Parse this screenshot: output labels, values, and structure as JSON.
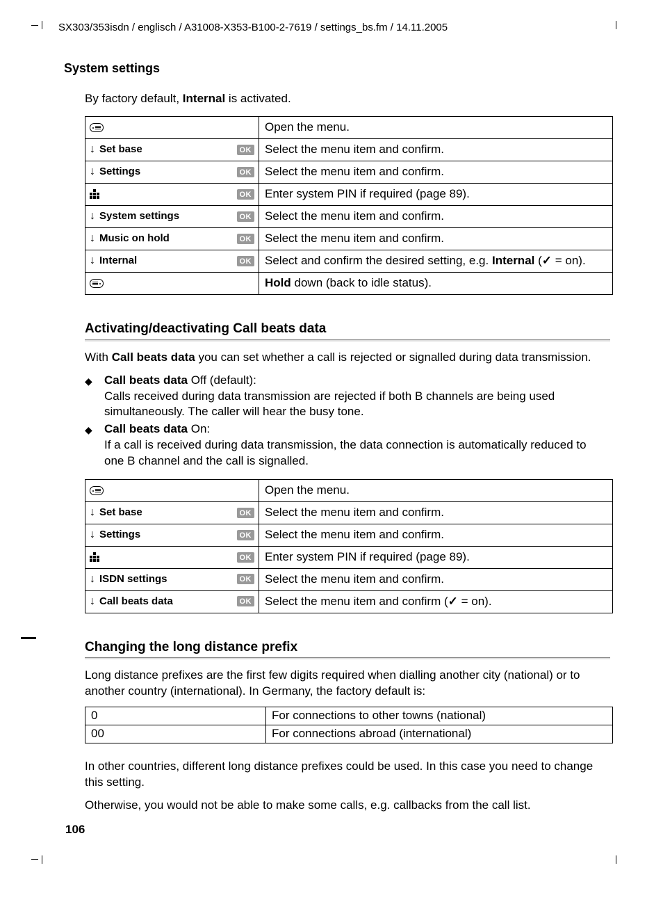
{
  "header": "SX303/353isdn / englisch / A31008-X353-B100-2-7619 / settings_bs.fm / 14.11.2005",
  "section_title": "System settings",
  "intro_pre": "By factory default, ",
  "intro_bold": "Internal",
  "intro_post": " is activated.",
  "proc1": {
    "rows": [
      {
        "icon": "menu-left",
        "desc": "Open the menu."
      },
      {
        "icon": "down",
        "label": "Set base",
        "ok": true,
        "desc": "Select the menu item and confirm."
      },
      {
        "icon": "down",
        "label": "Settings",
        "ok": true,
        "desc": "Select the menu item and confirm."
      },
      {
        "icon": "keypad",
        "ok": true,
        "desc": "Enter system PIN if required (page 89)."
      },
      {
        "icon": "down",
        "label": "System settings",
        "ok": true,
        "desc": "Select the menu item and confirm."
      },
      {
        "icon": "down",
        "label": "Music on hold",
        "ok": true,
        "desc": "Select the menu item and confirm."
      },
      {
        "icon": "down",
        "label": "Internal",
        "ok": true,
        "desc_html": "Select and confirm the desired setting, e.g. <b>Internal</b> (<span class='check'>✓</span> = on)."
      },
      {
        "icon": "menu-right",
        "desc_html": "<b>Hold</b> down (back to idle status)."
      }
    ]
  },
  "h2a": "Activating/deactivating Call beats data",
  "p2_pre": "With ",
  "p2_bold": "Call beats data",
  "p2_post": " you can set whether a call is rejected or signalled during data transmission.",
  "bullets": [
    {
      "lead_bold": "Call beats data",
      "lead_rest": " Off (default):",
      "body": "Calls received during data transmission are rejected if both B channels are being used simultaneously. The caller will hear the busy tone."
    },
    {
      "lead_bold": "Call beats data",
      "lead_rest": " On:",
      "body": "If a call is received during data transmission, the data connection is automatically reduced to one B channel and the call is signalled."
    }
  ],
  "proc2": {
    "rows": [
      {
        "icon": "menu-left",
        "desc": "Open the menu."
      },
      {
        "icon": "down",
        "label": "Set base",
        "ok": true,
        "desc": "Select the menu item and confirm."
      },
      {
        "icon": "down",
        "label": "Settings",
        "ok": true,
        "desc": "Select the menu item and confirm."
      },
      {
        "icon": "keypad",
        "ok": true,
        "desc": "Enter system PIN if required (page 89)."
      },
      {
        "icon": "down",
        "label": "ISDN settings",
        "ok": true,
        "desc": "Select the menu item and confirm."
      },
      {
        "icon": "down",
        "label": "Call beats data",
        "ok": true,
        "desc_html": "Select the menu item and confirm (<span class='check'>✓</span> = on)."
      }
    ]
  },
  "h2b": "Changing the long distance prefix",
  "p3": "Long distance prefixes are the first few digits required when dialling another city (national) or to another country (international). In Germany, the factory default is:",
  "prefix_table": [
    {
      "code": "0",
      "desc": "For connections to other towns (national)"
    },
    {
      "code": "00",
      "desc": "For connections abroad (international)"
    }
  ],
  "p4": "In other countries, different long distance prefixes could be used. In this case you need to change this setting.",
  "p5": "Otherwise, you would not be able to make some calls, e.g. callbacks from the call list.",
  "page_number": "106",
  "ok_label": "OK",
  "colors": {
    "rule_top": "#888888",
    "rule_bot": "#dddddd",
    "ok_bg": "#999999",
    "border": "#000000"
  }
}
